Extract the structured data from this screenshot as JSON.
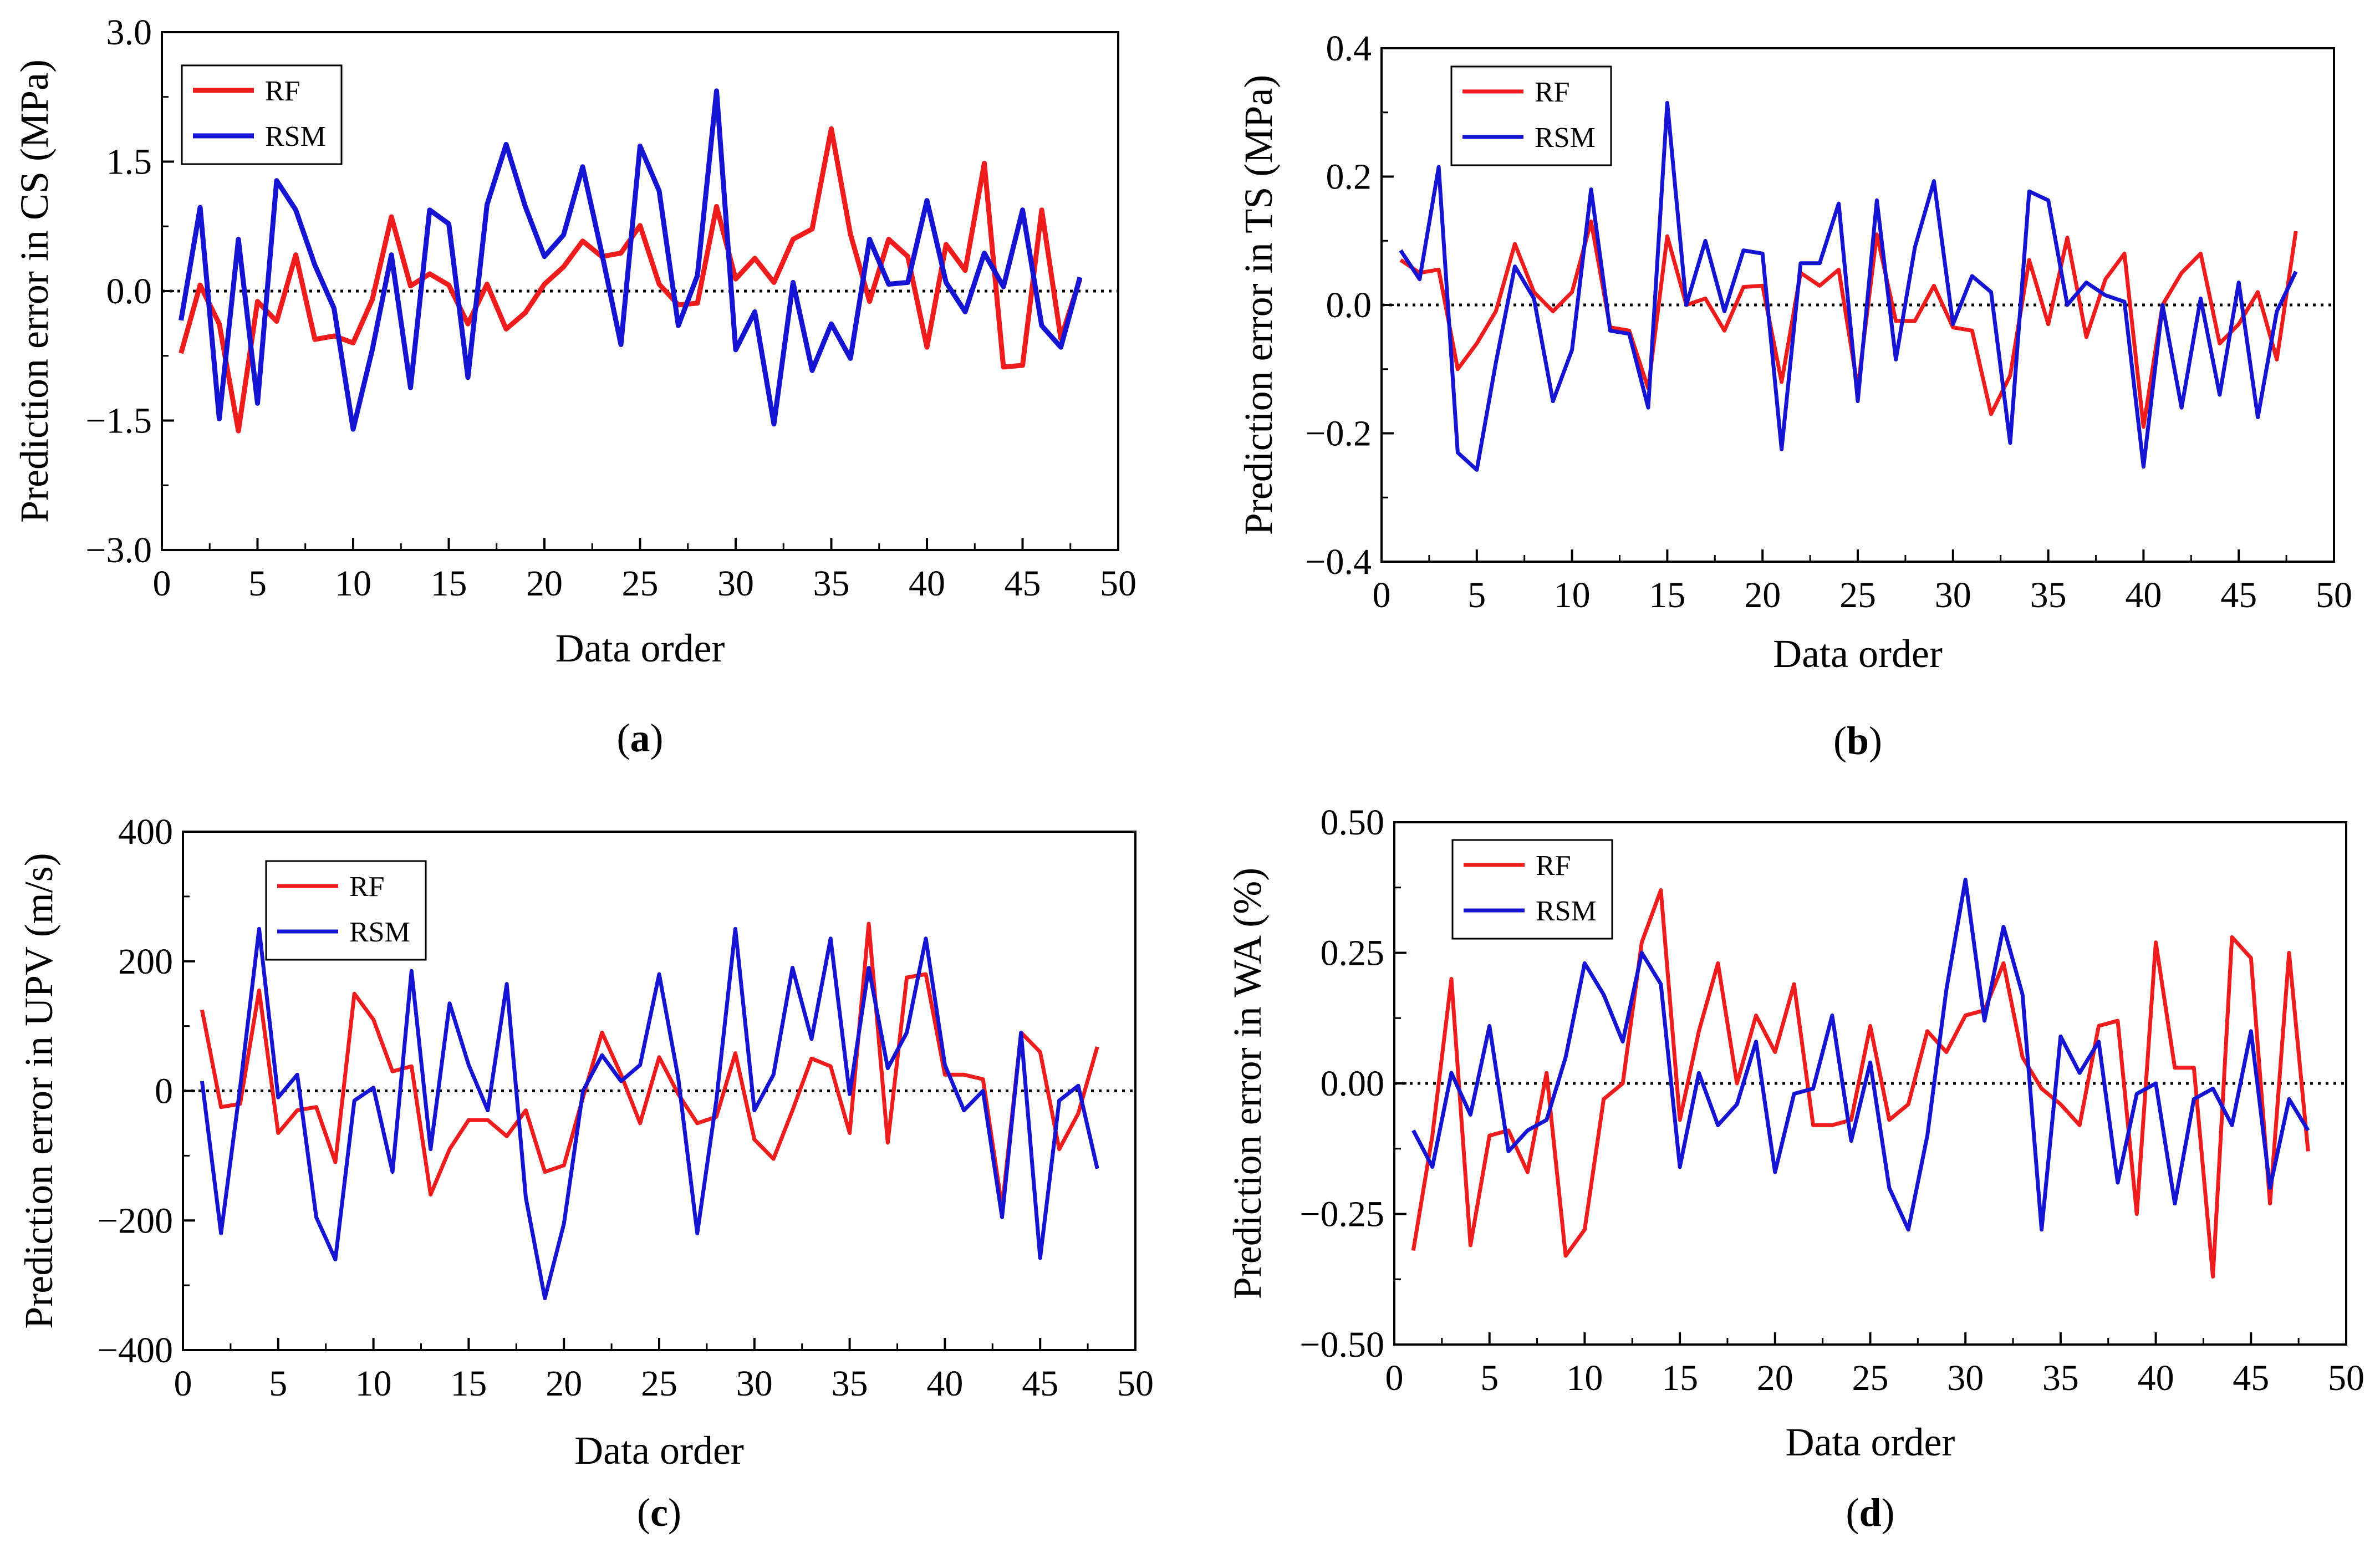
{
  "figure": {
    "panels": [
      "(a)",
      "(b)",
      "(c)",
      "(d)"
    ],
    "colors": {
      "RF": "#ee1c1c",
      "RSM": "#1414d2",
      "zero_line": "#000000"
    }
  },
  "chart_data": [
    {
      "type": "line",
      "panel_label": "a",
      "xlabel": "Data order",
      "ylabel": "Prediction error in CS (MPa)",
      "xlim": [
        0,
        50
      ],
      "ylim": [
        -3.0,
        3.0
      ],
      "xticks": [
        "0",
        "5",
        "10",
        "15",
        "20",
        "25",
        "30",
        "35",
        "40",
        "45",
        "50"
      ],
      "yticks": [
        "3.0",
        "1.5",
        "0.0",
        "−1.5",
        "−3.0"
      ],
      "legend": [
        "RF",
        "RSM"
      ],
      "x": [
        1,
        2,
        3,
        4,
        5,
        6,
        7,
        8,
        9,
        10,
        11,
        12,
        13,
        14,
        15,
        16,
        17,
        18,
        19,
        20,
        21,
        22,
        23,
        24,
        25,
        26,
        27,
        28,
        29,
        30,
        31,
        32,
        33,
        34,
        35,
        36,
        37,
        38,
        39,
        40,
        41,
        42,
        43,
        44,
        45,
        46,
        47,
        48
      ],
      "series": [
        {
          "name": "RF",
          "values": [
            -0.72,
            0.07,
            -0.38,
            -1.62,
            -0.12,
            -0.35,
            0.42,
            -0.56,
            -0.52,
            -0.6,
            -0.1,
            0.86,
            0.06,
            0.2,
            0.07,
            -0.38,
            0.08,
            -0.44,
            -0.25,
            0.08,
            0.28,
            0.58,
            0.4,
            0.44,
            0.76,
            0.08,
            -0.16,
            -0.14,
            0.98,
            0.14,
            0.38,
            0.1,
            0.6,
            0.72,
            1.88,
            0.66,
            -0.12,
            0.6,
            0.4,
            -0.65,
            0.54,
            0.24,
            1.48,
            -0.88,
            -0.86,
            0.94,
            -0.55,
            0.14
          ]
        },
        {
          "name": "RSM",
          "values": [
            -0.34,
            0.97,
            -1.48,
            0.6,
            -1.3,
            1.28,
            0.94,
            0.3,
            -0.2,
            -1.6,
            -0.68,
            0.42,
            -1.12,
            0.94,
            0.78,
            -1.0,
            1.0,
            1.7,
            0.98,
            0.4,
            0.65,
            1.44,
            0.44,
            -0.62,
            1.68,
            1.16,
            -0.4,
            0.18,
            2.32,
            -0.68,
            -0.24,
            -1.54,
            0.1,
            -0.92,
            -0.38,
            -0.78,
            0.6,
            0.08,
            0.1,
            1.05,
            0.1,
            -0.24,
            0.44,
            0.05,
            0.94,
            -0.4,
            -0.65,
            0.16
          ]
        }
      ]
    },
    {
      "type": "line",
      "panel_label": "b",
      "xlabel": "Data order",
      "ylabel": "Prediction error in TS (MPa)",
      "xlim": [
        0,
        50
      ],
      "ylim": [
        -0.4,
        0.4
      ],
      "xticks": [
        "0",
        "5",
        "10",
        "15",
        "20",
        "25",
        "30",
        "35",
        "40",
        "45",
        "50"
      ],
      "yticks": [
        "0.4",
        "0.2",
        "0.0",
        "−0.2",
        "−0.4"
      ],
      "legend": [
        "RF",
        "RSM"
      ],
      "x": [
        1,
        2,
        3,
        4,
        5,
        6,
        7,
        8,
        9,
        10,
        11,
        12,
        13,
        14,
        15,
        16,
        17,
        18,
        19,
        20,
        21,
        22,
        23,
        24,
        25,
        26,
        27,
        28,
        29,
        30,
        31,
        32,
        33,
        34,
        35,
        36,
        37,
        38,
        39,
        40,
        41,
        42,
        43,
        44,
        45,
        46,
        47,
        48
      ],
      "series": [
        {
          "name": "RF",
          "values": [
            0.07,
            0.05,
            0.055,
            -0.1,
            -0.06,
            -0.01,
            0.095,
            0.02,
            -0.01,
            0.02,
            0.13,
            -0.035,
            -0.04,
            -0.13,
            0.107,
            0.0,
            0.01,
            -0.04,
            0.028,
            0.03,
            -0.12,
            0.05,
            0.03,
            0.055,
            -0.13,
            0.11,
            -0.025,
            -0.025,
            0.03,
            -0.035,
            -0.04,
            -0.17,
            -0.11,
            0.07,
            -0.03,
            0.105,
            -0.05,
            0.04,
            0.08,
            -0.19,
            0.0,
            0.05,
            0.08,
            -0.06,
            -0.03,
            0.02,
            -0.085,
            0.115
          ]
        },
        {
          "name": "RSM",
          "values": [
            0.085,
            0.04,
            0.215,
            -0.23,
            -0.257,
            -0.09,
            0.06,
            0.01,
            -0.15,
            -0.07,
            0.18,
            -0.04,
            -0.045,
            -0.16,
            0.315,
            0.0,
            0.1,
            -0.01,
            0.085,
            0.08,
            -0.225,
            0.065,
            0.065,
            0.158,
            -0.15,
            0.163,
            -0.085,
            0.09,
            0.193,
            -0.03,
            0.045,
            0.02,
            -0.215,
            0.177,
            0.163,
            0.0,
            0.035,
            0.015,
            0.005,
            -0.252,
            0.0,
            -0.16,
            0.01,
            -0.14,
            0.035,
            -0.175,
            -0.01,
            0.052
          ]
        }
      ]
    },
    {
      "type": "line",
      "panel_label": "c",
      "xlabel": "Data order",
      "ylabel": "Prediction error in UPV (m/s)",
      "xlim": [
        0,
        50
      ],
      "ylim": [
        -400,
        400
      ],
      "xticks": [
        "0",
        "5",
        "10",
        "15",
        "20",
        "25",
        "30",
        "35",
        "40",
        "45",
        "50"
      ],
      "yticks": [
        "400",
        "200",
        "0",
        "−200",
        "−400"
      ],
      "legend": [
        "RF",
        "RSM"
      ],
      "x": [
        1,
        2,
        3,
        4,
        5,
        6,
        7,
        8,
        9,
        10,
        11,
        12,
        13,
        14,
        15,
        16,
        17,
        18,
        19,
        20,
        21,
        22,
        23,
        24,
        25,
        26,
        27,
        28,
        29,
        30,
        31,
        32,
        33,
        34,
        35,
        36,
        37,
        38,
        39,
        40,
        41,
        42,
        43,
        44,
        45,
        46,
        47,
        48
      ],
      "series": [
        {
          "name": "RF",
          "values": [
            125,
            -25,
            -20,
            155,
            -65,
            -30,
            -25,
            -110,
            150,
            110,
            30,
            38,
            -160,
            -90,
            -45,
            -45,
            -70,
            -30,
            -125,
            -115,
            -10,
            90,
            25,
            -50,
            52,
            -5,
            -50,
            -40,
            58,
            -75,
            -105,
            -30,
            50,
            38,
            -65,
            258,
            -80,
            175,
            180,
            25,
            25,
            18,
            -180,
            90,
            60,
            -90,
            -35,
            68
          ]
        },
        {
          "name": "RSM",
          "values": [
            15,
            -220,
            5,
            250,
            -10,
            25,
            -195,
            -260,
            -15,
            5,
            -125,
            185,
            -90,
            135,
            40,
            -30,
            165,
            -165,
            -320,
            -205,
            0,
            55,
            15,
            40,
            180,
            20,
            -220,
            -15,
            250,
            -30,
            25,
            190,
            80,
            235,
            -5,
            190,
            35,
            90,
            235,
            40,
            -30,
            0,
            -195,
            90,
            -258,
            -15,
            8,
            -120
          ]
        }
      ]
    },
    {
      "type": "line",
      "panel_label": "d",
      "xlabel": "Data order",
      "ylabel": "Prediction error in WA (%)",
      "xlim": [
        0,
        50
      ],
      "ylim": [
        -0.5,
        0.5
      ],
      "xticks": [
        "0",
        "5",
        "10",
        "15",
        "20",
        "25",
        "30",
        "35",
        "40",
        "45",
        "50"
      ],
      "yticks": [
        "0.50",
        "0.25",
        "0.00",
        "−0.25",
        "−0.50"
      ],
      "legend": [
        "RF",
        "RSM"
      ],
      "x": [
        1,
        2,
        3,
        4,
        5,
        6,
        7,
        8,
        9,
        10,
        11,
        12,
        13,
        14,
        15,
        16,
        17,
        18,
        19,
        20,
        21,
        22,
        23,
        24,
        25,
        26,
        27,
        28,
        29,
        30,
        31,
        32,
        33,
        34,
        35,
        36,
        37,
        38,
        39,
        40,
        41,
        42,
        43,
        44,
        45,
        46,
        47,
        48
      ],
      "series": [
        {
          "name": "RF",
          "values": [
            -0.32,
            -0.1,
            0.2,
            -0.31,
            -0.1,
            -0.09,
            -0.17,
            0.02,
            -0.33,
            -0.28,
            -0.03,
            0.0,
            0.27,
            0.37,
            -0.07,
            0.1,
            0.23,
            0.0,
            0.13,
            0.06,
            0.19,
            -0.08,
            -0.08,
            -0.07,
            0.11,
            -0.07,
            -0.04,
            0.1,
            0.06,
            0.13,
            0.14,
            0.23,
            0.05,
            -0.01,
            -0.04,
            -0.08,
            0.11,
            0.12,
            -0.25,
            0.27,
            0.03,
            0.03,
            -0.37,
            0.28,
            0.24,
            -0.23,
            0.25,
            -0.13
          ]
        },
        {
          "name": "RSM",
          "values": [
            -0.09,
            -0.16,
            0.02,
            -0.06,
            0.11,
            -0.13,
            -0.09,
            -0.07,
            0.05,
            0.23,
            0.17,
            0.08,
            0.25,
            0.19,
            -0.16,
            0.02,
            -0.08,
            -0.04,
            0.08,
            -0.17,
            -0.02,
            -0.01,
            0.13,
            -0.11,
            0.04,
            -0.2,
            -0.28,
            -0.1,
            0.18,
            0.39,
            0.12,
            0.3,
            0.17,
            -0.28,
            0.09,
            0.02,
            0.08,
            -0.19,
            -0.02,
            0.0,
            -0.23,
            -0.03,
            -0.01,
            -0.08,
            0.1,
            -0.2,
            -0.03,
            -0.09
          ]
        }
      ]
    }
  ]
}
